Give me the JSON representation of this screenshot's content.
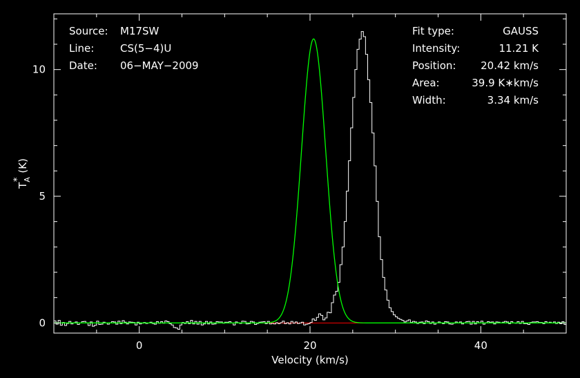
{
  "chart_data": {
    "type": "line",
    "xlabel": "Velocity (km/s)",
    "ylabel": {
      "base": "T",
      "sup": "*",
      "sub": "A",
      "unit": "(K)"
    },
    "xlim": [
      -10,
      50
    ],
    "ylim": [
      -0.4,
      12.2
    ],
    "x_ticks": [
      0,
      20,
      40
    ],
    "y_ticks": [
      0,
      5,
      10
    ],
    "grid": false,
    "colors": {
      "background": "#000000",
      "frame": "#ffffff",
      "spectrum": "#ffffff",
      "fit": "#00ff00",
      "baseline": "#ff0000"
    },
    "info_left": [
      {
        "key": "Source:",
        "value": "M17SW"
      },
      {
        "key": "Line:",
        "value": "CS(5−4)U"
      },
      {
        "key": "Date:",
        "value": "06−MAY−2009"
      }
    ],
    "info_right": [
      {
        "key": "Fit type:",
        "value": "GAUSS"
      },
      {
        "key": "Intensity:",
        "value": "11.21 K"
      },
      {
        "key": "Position:",
        "value": "20.42 km/s"
      },
      {
        "key": "Area:",
        "value": "39.9 K∗km/s"
      },
      {
        "key": "Width:",
        "value": "3.34 km/s"
      }
    ],
    "fit": {
      "amplitude": 11.21,
      "center": 20.42,
      "fwhm": 3.34
    },
    "spectrum": {
      "channel_width": 0.25,
      "x_start": -10,
      "values": [
        0.08,
        -0.05,
        0.1,
        -0.09,
        0.02,
        -0.1,
        -0.02,
        0.06,
        -0.04,
        0.01,
        0.04,
        -0.06,
        0.0,
        0.05,
        0.06,
        0.0,
        -0.1,
        0.04,
        -0.13,
        -0.09,
        0.07,
        -0.06,
        -0.05,
        0.03,
        0.0,
        -0.05,
        0.01,
        0.05,
        0.04,
        -0.05,
        0.07,
        -0.03,
        0.09,
        0.03,
        -0.04,
        0.04,
        0.03,
        0.02,
        -0.08,
        0.03,
        -0.04,
        -0.01,
        0.02,
        -0.02,
        0.0,
        0.03,
        -0.02,
        -0.05,
        0.05,
        -0.01,
        0.05,
        -0.01,
        0.08,
        0.05,
        -0.03,
        -0.08,
        -0.18,
        -0.2,
        -0.25,
        -0.08,
        0.02,
        -0.02,
        0.05,
        -0.03,
        0.1,
        -0.04,
        0.06,
        -0.05,
        0.06,
        -0.08,
        -0.04,
        0.06,
        -0.04,
        0.04,
        -0.05,
        -0.04,
        0.05,
        0.04,
        0.04,
        -0.01,
        0.03,
        0.03,
        0.05,
        0.0,
        -0.08,
        0.04,
        0.01,
        -0.02,
        0.07,
        0.06,
        -0.04,
        -0.03,
        0.06,
        0.04,
        -0.06,
        -0.02,
        0.03,
        0.04,
        0.05,
        -0.03,
        0.06,
        -0.04,
        -0.02,
        -0.04,
        0.01,
        -0.03,
        0.01,
        0.07,
        -0.03,
        0.01,
        -0.04,
        0.06,
        -0.01,
        0.04,
        -0.02,
        0.0,
        0.03,
        -0.08,
        -0.05,
        -0.03,
        0.02,
        0.16,
        0.1,
        0.22,
        0.36,
        0.3,
        0.12,
        0.2,
        0.42,
        0.4,
        0.8,
        1.1,
        1.25,
        1.6,
        2.3,
        3.0,
        4.0,
        5.2,
        6.4,
        7.7,
        8.9,
        10.0,
        10.8,
        11.2,
        11.5,
        11.3,
        10.6,
        9.6,
        8.7,
        7.5,
        6.2,
        4.8,
        3.4,
        2.5,
        1.8,
        1.3,
        0.9,
        0.6,
        0.45,
        0.32,
        0.24,
        0.18,
        0.14,
        0.1,
        0.04,
        0.08,
        0.12,
        0.02,
        0.06,
        0.04,
        -0.02,
        0.03,
        0.04,
        -0.03,
        0.08,
        0.05,
        -0.02,
        0.04,
        -0.05,
        0.0,
        0.04,
        0.01,
        -0.03,
        0.05,
        0.04,
        -0.04,
        -0.05,
        -0.01,
        0.04,
        0.01,
        0.04,
        -0.04,
        0.01,
        0.05,
        0.06,
        -0.05,
        0.06,
        -0.04,
        0.05,
        0.0,
        0.07,
        -0.05,
        0.01,
        0.05,
        0.03,
        0.04,
        -0.04,
        0.04,
        0.03,
        0.0,
        0.03,
        0.06,
        0.04,
        -0.03,
        0.05,
        0.0,
        -0.01,
        0.05,
        -0.02,
        0.06,
        -0.03,
        -0.03,
        -0.06,
        0.02,
        0.04,
        0.04,
        0.05,
        0.02,
        0.02,
        -0.03,
        0.05,
        0.0,
        0.03,
        0.0,
        0.04,
        -0.02,
        0.03,
        -0.03,
        0.05,
        -0.06
      ]
    }
  }
}
